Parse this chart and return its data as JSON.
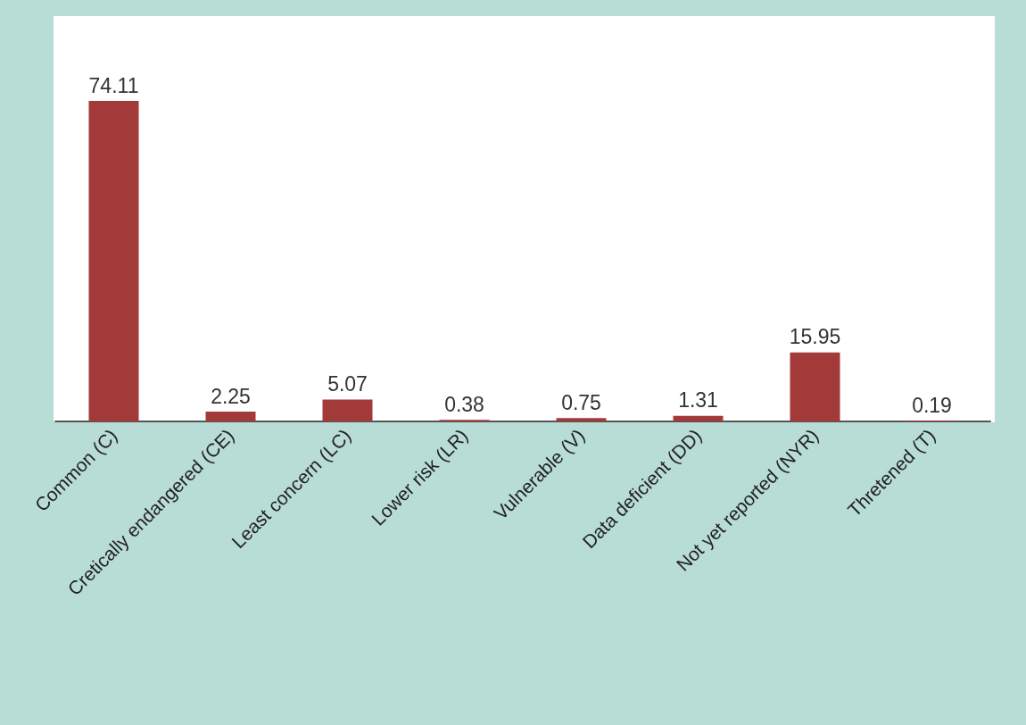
{
  "chart_data": {
    "type": "bar",
    "categories": [
      "Common (C)",
      "Cretically endangered (CE)",
      "Least concern (LC)",
      "Lower risk (LR)",
      "Vulnerable (V)",
      "Data deficient (DD)",
      "Not yet reported (NYR)",
      "Thretened (T)"
    ],
    "values": [
      74.11,
      2.25,
      5.07,
      0.38,
      0.75,
      1.31,
      15.95,
      0.19
    ],
    "color": "#a33a3a",
    "data_labels": true
  }
}
